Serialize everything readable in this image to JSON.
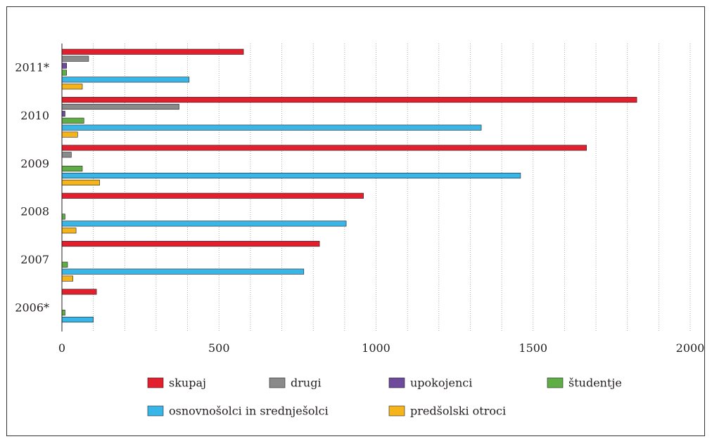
{
  "chart_data": {
    "type": "bar",
    "orientation": "horizontal",
    "categories": [
      "2006*",
      "2007",
      "2008",
      "2009",
      "2010",
      "2011*"
    ],
    "xlim": [
      0,
      2000
    ],
    "xticks": [
      0,
      500,
      1000,
      1500,
      2000
    ],
    "grid": "vertical dotted lines every 100",
    "legend_position": "bottom",
    "series": [
      {
        "name": "skupaj",
        "color": "#e31e2d",
        "values": [
          110,
          820,
          960,
          1670,
          1830,
          578
        ]
      },
      {
        "name": "drugi",
        "color": "#8a8a8a",
        "values": [
          0,
          0,
          0,
          30,
          373,
          85
        ]
      },
      {
        "name": "upokojenci",
        "color": "#6d4a9c",
        "values": [
          0,
          0,
          0,
          0,
          10,
          15
        ]
      },
      {
        "name": "študentje",
        "color": "#5fae45",
        "values": [
          10,
          18,
          10,
          65,
          70,
          15
        ]
      },
      {
        "name": "osnovnošolci in srednješolci",
        "color": "#38b6e8",
        "values": [
          100,
          770,
          905,
          1460,
          1335,
          405
        ]
      },
      {
        "name": "predšolski otroci",
        "color": "#f4b41a",
        "values": [
          0,
          35,
          45,
          120,
          50,
          65
        ]
      }
    ]
  }
}
